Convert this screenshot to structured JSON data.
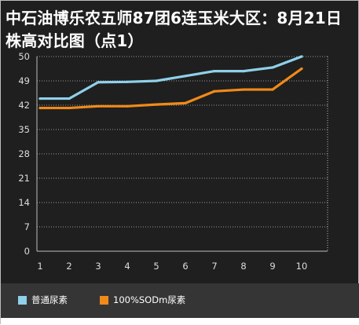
{
  "chart_data": {
    "type": "line",
    "title": "中石油博乐农五师87团6连玉米大区：8月21日株高对比图（点1）",
    "x": [
      1,
      2,
      3,
      4,
      5,
      6,
      7,
      8,
      9,
      10
    ],
    "y_ticks": [
      0,
      7,
      14,
      21,
      28,
      35,
      42,
      49,
      50
    ],
    "grid": true,
    "legend_position": "bottom-left",
    "series": [
      {
        "name": "普通尿素",
        "color": "#8fd0ea",
        "values": [
          43.9,
          43.9,
          48.6,
          48.7,
          49.0,
          49.2,
          49.4,
          49.4,
          49.55,
          50.2
        ]
      },
      {
        "name": "100%SODm尿素",
        "color": "#f08a1a",
        "values": [
          41.2,
          41.2,
          41.7,
          41.7,
          42.2,
          42.6,
          46.0,
          46.5,
          46.5,
          49.5
        ]
      }
    ]
  }
}
